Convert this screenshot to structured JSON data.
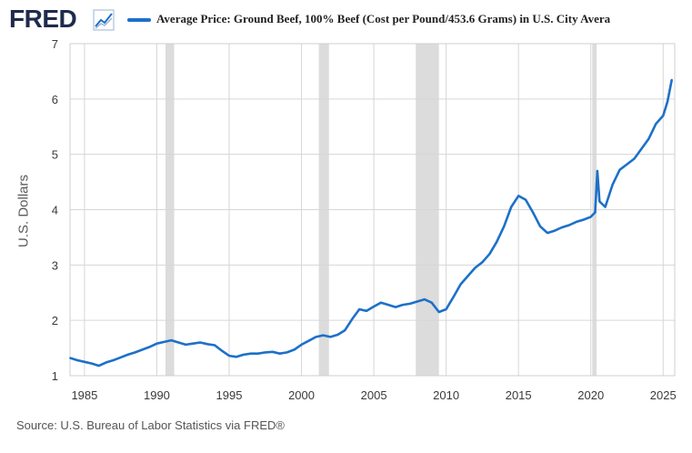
{
  "header": {
    "logo_text": "FRED",
    "logo_icon": "line-chart-icon",
    "series_title": "Average Price: Ground Beef, 100% Beef (Cost per Pound/453.6 Grams) in U.S. City Avera"
  },
  "footer": {
    "source": "Source: U.S. Bureau of Labor Statistics via FRED®"
  },
  "colors": {
    "line": "#1d70c9",
    "recession": "#dcdcdc",
    "grid": "#d6d6d6",
    "logo": "#1f2b4d"
  },
  "chart_data": {
    "type": "line",
    "title": "Average Price: Ground Beef, 100% Beef (Cost per Pound/453.6 Grams) in U.S. City Avera",
    "xlabel": "",
    "ylabel": "U.S. Dollars",
    "xlim": [
      1984.0,
      2025.8
    ],
    "ylim": [
      1,
      7
    ],
    "grid": true,
    "x_ticks": [
      "1985",
      "1990",
      "1995",
      "2000",
      "2005",
      "2010",
      "2015",
      "2020",
      "2025"
    ],
    "y_ticks": [
      "1",
      "2",
      "3",
      "4",
      "5",
      "6",
      "7"
    ],
    "recessions": [
      [
        1990.6,
        1991.2
      ],
      [
        2001.2,
        2001.9
      ],
      [
        2007.9,
        2009.5
      ],
      [
        2020.1,
        2020.4
      ]
    ],
    "series": [
      {
        "x": [
          1984.0,
          1984.5,
          1985.0,
          1985.5,
          1986.0,
          1986.5,
          1987.0,
          1987.5,
          1988.0,
          1988.5,
          1989.0,
          1989.5,
          1990.0,
          1990.5,
          1991.0,
          1991.5,
          1992.0,
          1992.5,
          1993.0,
          1993.5,
          1994.0,
          1994.5,
          1995.0,
          1995.5,
          1996.0,
          1996.5,
          1997.0,
          1997.5,
          1998.0,
          1998.5,
          1999.0,
          1999.5,
          2000.0,
          2000.5,
          2001.0,
          2001.5,
          2002.0,
          2002.5,
          2003.0,
          2003.5,
          2004.0,
          2004.5,
          2005.0,
          2005.5,
          2006.0,
          2006.5,
          2007.0,
          2007.5,
          2008.0,
          2008.5,
          2009.0,
          2009.5,
          2010.0,
          2010.5,
          2011.0,
          2011.5,
          2012.0,
          2012.5,
          2013.0,
          2013.5,
          2014.0,
          2014.5,
          2015.0,
          2015.5,
          2016.0,
          2016.5,
          2017.0,
          2017.5,
          2018.0,
          2018.5,
          2019.0,
          2019.5,
          2020.0,
          2020.3,
          2020.45,
          2020.6,
          2021.0,
          2021.5,
          2022.0,
          2022.5,
          2023.0,
          2023.5,
          2024.0,
          2024.5,
          2025.0,
          2025.3,
          2025.6
        ],
        "values": [
          1.32,
          1.28,
          1.25,
          1.22,
          1.18,
          1.24,
          1.28,
          1.33,
          1.38,
          1.42,
          1.47,
          1.52,
          1.58,
          1.61,
          1.64,
          1.6,
          1.56,
          1.58,
          1.6,
          1.57,
          1.55,
          1.45,
          1.36,
          1.34,
          1.38,
          1.4,
          1.4,
          1.42,
          1.43,
          1.4,
          1.42,
          1.47,
          1.56,
          1.63,
          1.7,
          1.73,
          1.7,
          1.74,
          1.82,
          2.02,
          2.2,
          2.17,
          2.25,
          2.32,
          2.28,
          2.24,
          2.28,
          2.3,
          2.34,
          2.38,
          2.32,
          2.15,
          2.2,
          2.42,
          2.65,
          2.8,
          2.95,
          3.05,
          3.2,
          3.42,
          3.7,
          4.05,
          4.25,
          4.18,
          3.95,
          3.7,
          3.58,
          3.62,
          3.68,
          3.72,
          3.78,
          3.82,
          3.87,
          3.95,
          4.7,
          4.15,
          4.05,
          4.45,
          4.72,
          4.82,
          4.92,
          5.1,
          5.28,
          5.55,
          5.7,
          5.95,
          6.35
        ]
      }
    ]
  }
}
